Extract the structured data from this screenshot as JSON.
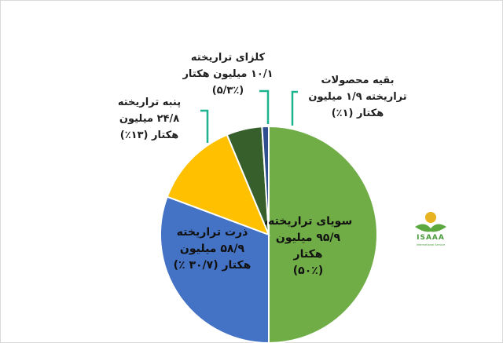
{
  "chart_data": {
    "type": "pie",
    "title": "",
    "slices": [
      {
        "name": "سویای تراریخته",
        "value": 50,
        "color": "#70ad47",
        "label_lines": [
          "سویای تراریخته،",
          "۹۵/۹ میلیون",
          "هکتار",
          "(۵۰٪)"
        ]
      },
      {
        "name": "ذرت تراریخته",
        "value": 30.7,
        "color": "#4472c4",
        "label_lines": [
          "ذرت تراریخته",
          "۵۸/۹ میلیون",
          "هکتار (۳۰/۷ ٪)"
        ]
      },
      {
        "name": "پنبه تراریخته",
        "value": 13,
        "color": "#ffc000",
        "label_lines": [
          "پنبه تراریخته",
          "۲۴/۸ میلیون",
          "هکتار (۱۳٪)"
        ]
      },
      {
        "name": "کلزای تراریخته",
        "value": 5.3,
        "color": "#375f2c",
        "label_lines": [
          "کلزای تراریخته",
          "۱۰/۱ میلیون هکتار",
          "(۵/۳٪)"
        ]
      },
      {
        "name": "بقیه محصولات تراریخته",
        "value": 1,
        "color": "#2f4f8f",
        "label_lines": [
          "بقیه محصولات",
          "تراریخته ۱/۹ میلیون",
          "هکتار (۱٪)"
        ]
      }
    ],
    "start_angle_deg": 0,
    "direction": "clockwise",
    "label_color": "#1f1f1f",
    "leader_color": "#1cb38e"
  },
  "logo": {
    "text": "ISAAA",
    "subtitle": "International Service",
    "color": "#4a9a3c"
  }
}
